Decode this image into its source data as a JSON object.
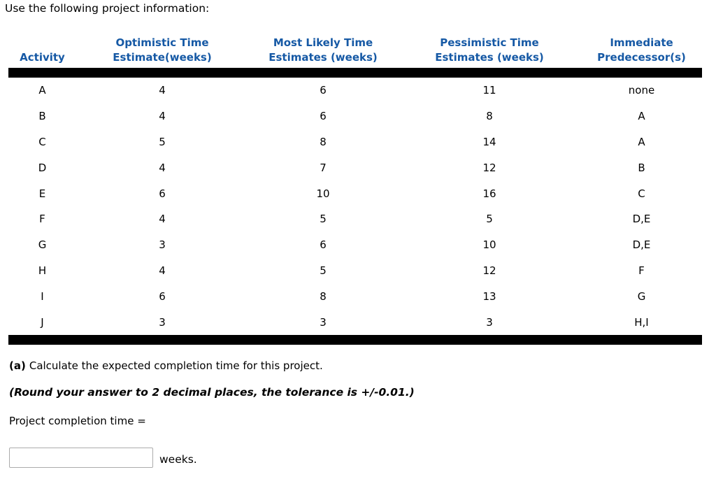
{
  "page": {
    "title": "Use the following project information:"
  },
  "table": {
    "headers": [
      {
        "line1": "",
        "line2": "Activity"
      },
      {
        "line1": "Optimistic Time",
        "line2": "Estimate(weeks)"
      },
      {
        "line1": "Most Likely Time",
        "line2": "Estimates (weeks)"
      },
      {
        "line1": "Pessimistic Time",
        "line2": "Estimates (weeks)"
      },
      {
        "line1": "Immediate",
        "line2": "Predecessor(s)"
      }
    ],
    "rows": [
      {
        "activity": "A",
        "optimistic": "4",
        "most_likely": "6",
        "pessimistic": "11",
        "predecessors": "none"
      },
      {
        "activity": "B",
        "optimistic": "4",
        "most_likely": "6",
        "pessimistic": "8",
        "predecessors": "A"
      },
      {
        "activity": "C",
        "optimistic": "5",
        "most_likely": "8",
        "pessimistic": "14",
        "predecessors": "A"
      },
      {
        "activity": "D",
        "optimistic": "4",
        "most_likely": "7",
        "pessimistic": "12",
        "predecessors": "B"
      },
      {
        "activity": "E",
        "optimistic": "6",
        "most_likely": "10",
        "pessimistic": "16",
        "predecessors": "C"
      },
      {
        "activity": "F",
        "optimistic": "4",
        "most_likely": "5",
        "pessimistic": "5",
        "predecessors": "D,E"
      },
      {
        "activity": "G",
        "optimistic": "3",
        "most_likely": "6",
        "pessimistic": "10",
        "predecessors": "D,E"
      },
      {
        "activity": "H",
        "optimistic": "4",
        "most_likely": "5",
        "pessimistic": "12",
        "predecessors": "F"
      },
      {
        "activity": "I",
        "optimistic": "6",
        "most_likely": "8",
        "pessimistic": "13",
        "predecessors": "G"
      },
      {
        "activity": "J",
        "optimistic": "3",
        "most_likely": "3",
        "pessimistic": "3",
        "predecessors": "H,I"
      }
    ]
  },
  "question": {
    "part_label": "(a)",
    "part_text": "Calculate the expected completion time for this project.",
    "rounding_note": "(Round your answer to 2 decimal places, the tolerance is +/-0.01.)",
    "prompt": "Project completion time =",
    "answer_value": "",
    "unit_label": "weeks."
  },
  "colors": {
    "header_blue": "#1659A5",
    "bar_black": "#000000"
  }
}
